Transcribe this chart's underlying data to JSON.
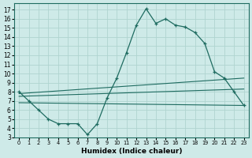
{
  "xlabel": "Humidex (Indice chaleur)",
  "bg_color": "#ceeae8",
  "grid_color": "#afd4d0",
  "line_color": "#1e6b60",
  "xlim": [
    -0.5,
    23.5
  ],
  "ylim": [
    3,
    17.7
  ],
  "yticks": [
    3,
    4,
    5,
    6,
    7,
    8,
    9,
    10,
    11,
    12,
    13,
    14,
    15,
    16,
    17
  ],
  "xticks": [
    0,
    1,
    2,
    3,
    4,
    5,
    6,
    7,
    8,
    9,
    10,
    11,
    12,
    13,
    14,
    15,
    16,
    17,
    18,
    19,
    20,
    21,
    22,
    23
  ],
  "main_x": [
    0,
    1,
    2,
    3,
    4,
    5,
    6,
    7,
    8,
    9,
    10,
    11,
    12,
    13,
    14,
    15,
    16,
    17,
    18,
    19,
    20,
    21,
    22,
    23
  ],
  "main_y": [
    8.0,
    7.0,
    6.0,
    5.0,
    4.5,
    4.5,
    4.5,
    3.3,
    4.5,
    7.3,
    9.5,
    12.3,
    15.3,
    17.1,
    15.5,
    16.0,
    15.3,
    15.1,
    14.5,
    13.3,
    10.2,
    9.5,
    8.0,
    6.5
  ],
  "line1_x": [
    0,
    23
  ],
  "line1_y": [
    7.8,
    9.5
  ],
  "line2_x": [
    0,
    23
  ],
  "line2_y": [
    7.5,
    8.3
  ],
  "line3_x": [
    0,
    23
  ],
  "line3_y": [
    6.8,
    6.5
  ]
}
